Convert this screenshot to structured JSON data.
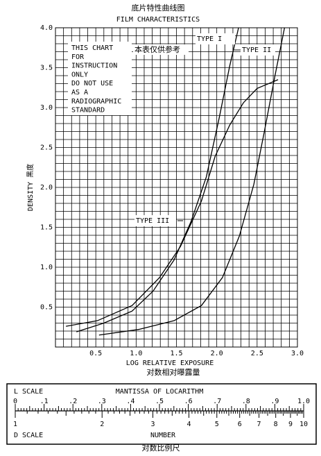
{
  "chart_data": {
    "type": "line",
    "title": "底片特性曲线图",
    "subtitle": "FILM CHARACTERISTICS",
    "y_label": "DENSITY 黑度",
    "x_label": "LOG RELATIVE EXPOSURE",
    "x_label_2": "对数相对曝露量",
    "note": [
      "THIS CHART",
      "FOR",
      "INSTRUCTION",
      "ONLY",
      "DO NOT USE",
      "AS A",
      "RADIOGRAPHIC",
      "STANDARD"
    ],
    "note_2": "本表仅供参考",
    "xlim": [
      0,
      3
    ],
    "ylim": [
      0,
      4
    ],
    "xticks": [
      0.5,
      {
        "value": 1,
        "label": "1.0"
      },
      1.5,
      {
        "value": 2,
        "label": "2.0"
      },
      2.5,
      {
        "value": 3,
        "label": "3.0"
      }
    ],
    "yticks": [
      0.5,
      {
        "value": 1,
        "label": "1.0"
      },
      1.5,
      {
        "value": 2,
        "label": "2.0"
      },
      2.5,
      {
        "value": 3,
        "label": "3.0"
      },
      3.5,
      {
        "value": 4,
        "label": "4.0"
      }
    ],
    "xgrid": [
      0,
      0.1,
      0.2,
      0.3,
      0.4,
      0.5,
      0.6,
      0.7,
      0.8,
      0.9,
      1,
      1.1,
      1.2,
      1.3,
      1.4,
      1.5,
      1.6,
      1.7,
      1.8,
      1.9,
      2,
      2.1,
      2.2,
      2.3,
      2.4,
      2.5,
      2.6,
      2.7,
      2.8,
      2.9,
      3
    ],
    "ygrid": [
      0,
      0.1,
      0.2,
      0.3,
      0.4,
      0.5,
      0.6,
      0.7,
      0.8,
      0.9,
      1,
      1.1,
      1.2,
      1.3,
      1.4,
      1.5,
      1.6,
      1.7,
      1.8,
      1.9,
      2,
      2.1,
      2.2,
      2.3,
      2.4,
      2.5,
      2.6,
      2.7,
      2.8,
      2.9,
      3,
      3.1,
      3.2,
      3.3,
      3.4,
      3.5,
      3.6,
      3.7,
      3.8,
      3.9,
      4
    ],
    "series": [
      {
        "name": "TYPE I",
        "color": "#000000",
        "x": [
          0.54,
          1.03,
          1.47,
          1.81,
          2.07,
          2.28,
          2.46,
          2.59,
          2.72,
          2.84
        ],
        "values": [
          0.15,
          0.22,
          0.33,
          0.52,
          0.87,
          1.39,
          2.04,
          2.7,
          3.39,
          4.0
        ]
      },
      {
        "name": "TYPE II",
        "color": "#000000",
        "x": [
          0.26,
          0.6,
          0.95,
          1.21,
          1.47,
          1.68,
          1.87,
          2.03,
          2.16,
          2.27
        ],
        "values": [
          0.19,
          0.3,
          0.45,
          0.7,
          1.09,
          1.57,
          2.13,
          2.87,
          3.52,
          4.0
        ]
      },
      {
        "name": "TYPE III",
        "color": "#000000",
        "x": [
          0.13,
          0.52,
          0.95,
          1.29,
          1.55,
          1.81,
          1.98,
          2.16,
          2.33,
          2.5,
          2.76
        ],
        "values": [
          0.26,
          0.33,
          0.52,
          0.87,
          1.26,
          1.83,
          2.39,
          2.78,
          3.06,
          3.24,
          3.35
        ]
      }
    ]
  },
  "ruler": {
    "l_label": "L SCALE",
    "l_title": "MANTISSA OF LOCARITHM",
    "l_ticks": [
      0,
      {
        "value": 0.1,
        "label": ".1"
      },
      {
        "value": 0.2,
        "label": ".2"
      },
      {
        "value": 0.3,
        "label": ".3"
      },
      {
        "value": 0.4,
        "label": ".4"
      },
      {
        "value": 0.5,
        "label": ".5"
      },
      {
        "value": 0.6,
        "label": ".6"
      },
      {
        "value": 0.7,
        "label": ".7"
      },
      {
        "value": 0.8,
        "label": ".8"
      },
      {
        "value": 0.9,
        "label": ".9"
      },
      {
        "value": 1,
        "label": "1.0"
      }
    ],
    "d_label": "D SCALE",
    "d_title": "NUMBER",
    "d_ticks": [
      1,
      2,
      3,
      4,
      5,
      6,
      7,
      8,
      9,
      10
    ],
    "caption": "对数比例尺"
  }
}
